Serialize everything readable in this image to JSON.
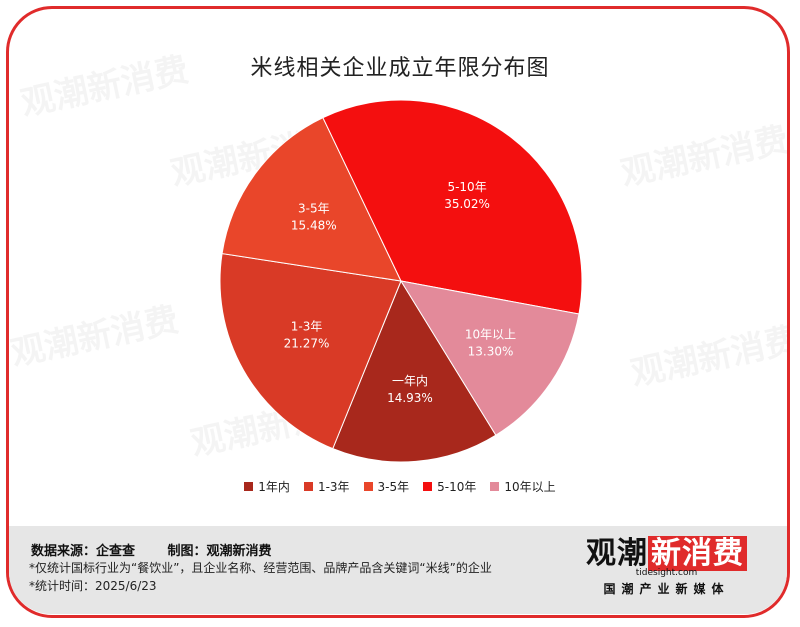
{
  "chart_data": {
    "type": "pie",
    "title": "米线相关企业成立年限分布图",
    "legend_position": "bottom",
    "slices": [
      {
        "name": "一年内",
        "value": 14.93,
        "label": "14.93%",
        "color": "#a8281c"
      },
      {
        "name": "1-3年",
        "value": 21.27,
        "label": "21.27%",
        "color": "#d93a26"
      },
      {
        "name": "3-5年",
        "value": 15.48,
        "label": "15.48%",
        "color": "#e9462a"
      },
      {
        "name": "5-10年",
        "value": 35.02,
        "label": "35.02%",
        "color": "#f40f0f"
      },
      {
        "name": "10年以上",
        "value": 13.3,
        "label": "13.30%",
        "color": "#e38a9a"
      }
    ],
    "legend": [
      "1年内",
      "1-3年",
      "3-5年",
      "5-10年",
      "10年以上"
    ]
  },
  "footer": {
    "source": "数据来源：企查查",
    "made_by": "制图：观潮新消费",
    "note1": "*仅统计国标行业为“餐饮业”，且企业名称、经营范围、品牌产品含关键词“米线”的企业",
    "note2": "*统计时间：2025/6/23"
  },
  "logo": {
    "part1": "观潮",
    "part2": "新消费",
    "site": "tidesight.com",
    "sub": "国潮产业新媒体"
  },
  "watermark": "观潮新消费"
}
